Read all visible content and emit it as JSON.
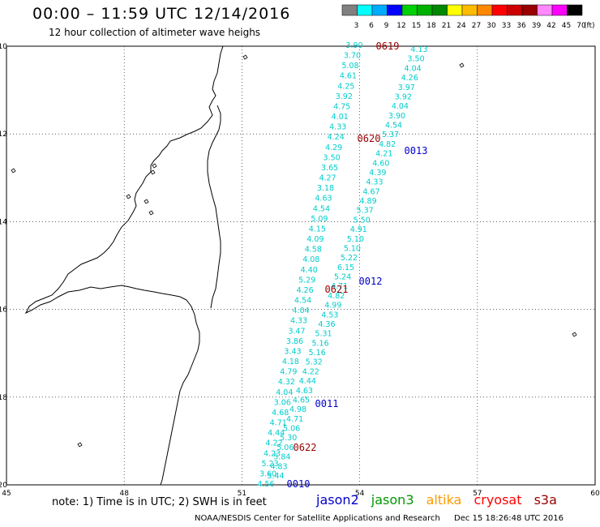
{
  "header": {
    "title": "00:00 – 11:59 UTC 12/14/2016",
    "subtitle": "12 hour collection of altimeter wave heighs"
  },
  "colorbar": {
    "unit_label": "(ft)",
    "bins": [
      {
        "label": "3",
        "color": "#808080"
      },
      {
        "label": "6",
        "color": "#00ffff"
      },
      {
        "label": "9",
        "color": "#00aaff"
      },
      {
        "label": "12",
        "color": "#0000ff"
      },
      {
        "label": "15",
        "color": "#00d000"
      },
      {
        "label": "18",
        "color": "#00b000"
      },
      {
        "label": "21",
        "color": "#008800"
      },
      {
        "label": "24",
        "color": "#ffff00"
      },
      {
        "label": "27",
        "color": "#ffbb00"
      },
      {
        "label": "30",
        "color": "#ff8800"
      },
      {
        "label": "33",
        "color": "#ff0000"
      },
      {
        "label": "36",
        "color": "#cc0000"
      },
      {
        "label": "39",
        "color": "#990000"
      },
      {
        "label": "42",
        "color": "#ff88ff"
      },
      {
        "label": "45",
        "color": "#ff00ff"
      },
      {
        "label": "70",
        "color": "#000000"
      }
    ]
  },
  "axes": {
    "lon_labels": [
      "45",
      "48",
      "51",
      "54",
      "57",
      "60"
    ],
    "lat_labels": [
      "-10",
      "-12",
      "-14",
      "-16",
      "-18",
      "-20"
    ]
  },
  "track_labels": {
    "color_time_blue": "#0000cc",
    "color_time_red": "#990000",
    "blue": [
      "0013",
      "0012",
      "0011",
      "0010"
    ],
    "red": [
      "0619",
      "0620",
      "0621",
      "0622"
    ]
  },
  "tracks": {
    "color": "#00cccc",
    "west": [
      "3.90",
      "3.70",
      "5.08",
      "4.61",
      "4.25",
      "3.92",
      "4.75",
      "4.01",
      "4.33",
      "4.24",
      "4.29",
      "3.50",
      "3.65",
      "4.27",
      "3.18",
      "4.63",
      "4.54",
      "5.09",
      "4.15",
      "4.09",
      "4.58",
      "4.08",
      "4.40",
      "5.29",
      "4.26",
      "4.54",
      "4.04",
      "4.33",
      "3.47",
      "3.86",
      "3.43",
      "4.18",
      "4.79",
      "4.32",
      "4.04",
      "3.06",
      "4.68",
      "4.71",
      "4.44",
      "4.22",
      "4.23",
      "5.23",
      "3.60",
      "4.56"
    ],
    "east": [
      "4.13",
      "3.50",
      "4.04",
      "4.26",
      "3.97",
      "3.92",
      "4.04",
      "3.90",
      "4.54",
      "5.37",
      "4.82",
      "4.21",
      "4.60",
      "4.39",
      "4.33",
      "4.67",
      "4.89",
      "5.37",
      "5.50",
      "4.91",
      "5.10",
      "5.10",
      "5.22",
      "6.15",
      "5.24",
      "4.71",
      "4.82",
      "4.99",
      "4.53",
      "4.36",
      "5.31",
      "5.16",
      "5.16",
      "5.32",
      "4.22",
      "4.44",
      "4.63",
      "4.65",
      "4.98",
      "4.71",
      "5.06",
      "5.30",
      "5.06",
      "5.84",
      "4.83",
      "5.44"
    ]
  },
  "notes": {
    "text": "note: 1) Time is in UTC; 2) SWH is in feet"
  },
  "legend": {
    "items": [
      {
        "label": "jason2",
        "color": "#0000cc"
      },
      {
        "label": "jason3",
        "color": "#009900"
      },
      {
        "label": "altika",
        "color": "#ff9900"
      },
      {
        "label": "cryosat",
        "color": "#ff0000"
      },
      {
        "label": "s3a",
        "color": "#990000"
      }
    ]
  },
  "credit": {
    "org": "NOAA/NESDIS Center for Satellite Applications and Research",
    "timestamp": "Dec 15 18:26:48 UTC 2016"
  }
}
